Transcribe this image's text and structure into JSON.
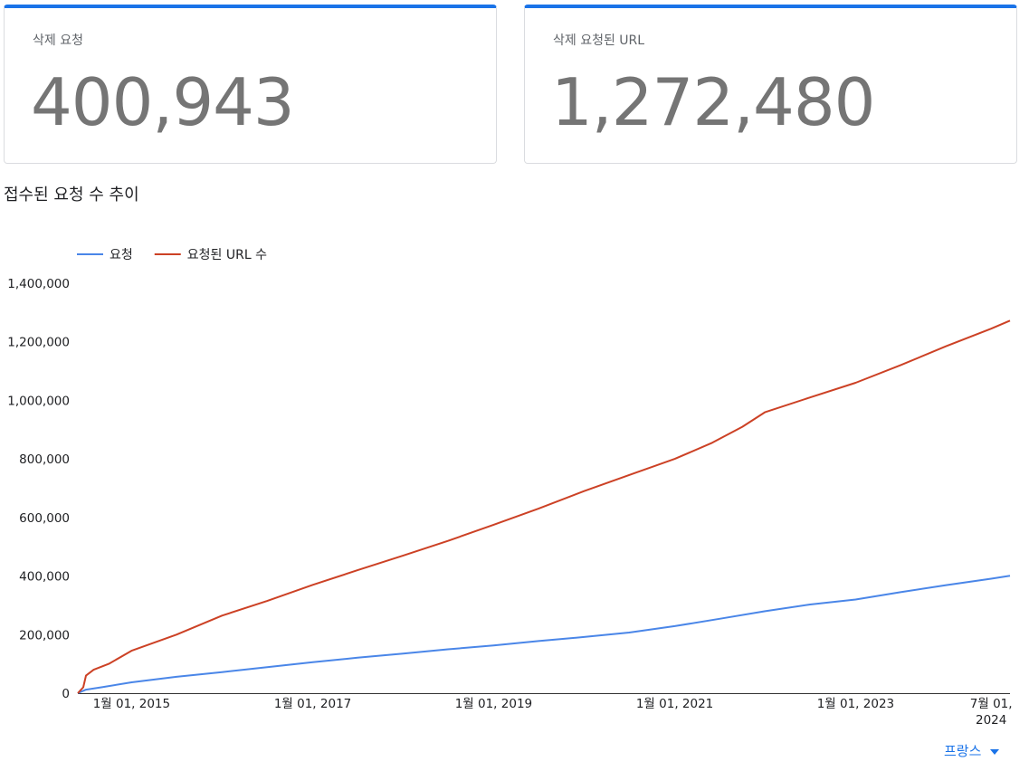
{
  "cards": [
    {
      "label": "삭제 요청",
      "value": "400,943"
    },
    {
      "label": "삭제 요청된 URL",
      "value": "1,272,480"
    }
  ],
  "section_title": "접수된 요청 수 추이",
  "country_selector": {
    "label": "프랑스"
  },
  "colors": {
    "accent": "#1a73e8",
    "requests": "#4a86e8",
    "urls": "#cc4125"
  },
  "chart_data": {
    "type": "line",
    "title": "",
    "xlabel": "",
    "ylabel": "",
    "ylim": [
      0,
      1400000
    ],
    "yticks": [
      0,
      200000,
      400000,
      600000,
      800000,
      1000000,
      1200000,
      1400000
    ],
    "ytick_labels": [
      "0",
      "200,000",
      "400,000",
      "600,000",
      "800,000",
      "1,000,000",
      "1,200,000",
      "1,400,000"
    ],
    "xlim": [
      "2014-05-29",
      "2024-09-15"
    ],
    "xticks": [
      {
        "date": "2015-01-01",
        "label": "1월 01, 2015"
      },
      {
        "date": "2017-01-01",
        "label": "1월 01, 2017"
      },
      {
        "date": "2019-01-01",
        "label": "1월 01, 2019"
      },
      {
        "date": "2021-01-01",
        "label": "1월 01, 2021"
      },
      {
        "date": "2023-01-01",
        "label": "1월 01, 2023"
      },
      {
        "date": "2024-07-01",
        "label": "7월 01,",
        "label2": "2024"
      }
    ],
    "grid": false,
    "legend": "top-left",
    "series": [
      {
        "name": "요청",
        "color": "#4a86e8",
        "x": [
          "2014-05-29",
          "2014-07-01",
          "2014-09-01",
          "2015-01-01",
          "2015-07-01",
          "2016-01-01",
          "2016-07-01",
          "2017-01-01",
          "2017-07-01",
          "2018-01-01",
          "2018-07-01",
          "2019-01-01",
          "2019-07-01",
          "2020-01-01",
          "2020-07-01",
          "2021-01-01",
          "2021-07-01",
          "2022-01-01",
          "2022-07-01",
          "2023-01-01",
          "2023-07-01",
          "2024-01-01",
          "2024-07-01",
          "2024-09-15"
        ],
        "values": [
          0,
          12000,
          20000,
          37000,
          56000,
          72000,
          89000,
          106000,
          121000,
          135000,
          150000,
          163000,
          178000,
          192000,
          207000,
          229000,
          254000,
          280000,
          303000,
          320000,
          345000,
          369000,
          391000,
          400943
        ]
      },
      {
        "name": "요청된 URL 수",
        "color": "#cc4125",
        "x": [
          "2014-05-29",
          "2014-06-20",
          "2014-07-01",
          "2014-08-01",
          "2014-10-01",
          "2015-01-01",
          "2015-07-01",
          "2016-01-01",
          "2016-07-01",
          "2017-01-01",
          "2017-07-01",
          "2018-01-01",
          "2018-07-01",
          "2019-01-01",
          "2019-07-01",
          "2020-01-01",
          "2020-07-01",
          "2021-01-01",
          "2021-06-01",
          "2021-10-01",
          "2022-01-01",
          "2022-07-01",
          "2023-01-01",
          "2023-07-01",
          "2024-01-01",
          "2024-07-01",
          "2024-09-15"
        ],
        "values": [
          0,
          20000,
          60000,
          80000,
          100000,
          145000,
          200000,
          265000,
          315000,
          370000,
          420000,
          470000,
          520000,
          575000,
          630000,
          690000,
          745000,
          800000,
          855000,
          910000,
          960000,
          1010000,
          1060000,
          1120000,
          1185000,
          1245000,
          1272480
        ]
      }
    ]
  }
}
